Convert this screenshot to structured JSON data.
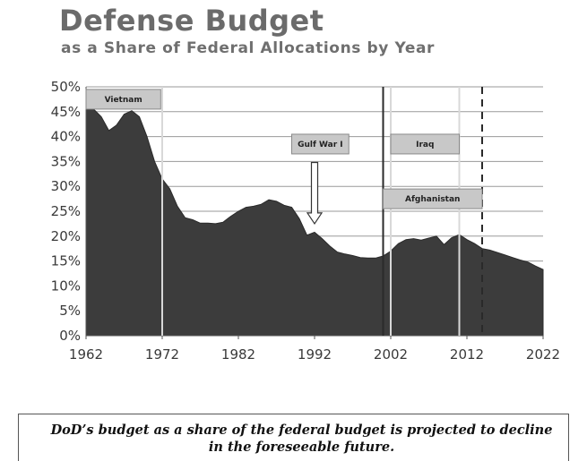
{
  "chart_data": {
    "type": "area",
    "title": "Defense Budget",
    "subtitle": "as a Share of Federal Allocations by Year",
    "y_unit": "%",
    "ylim": [
      0,
      50
    ],
    "y_ticks": [
      0,
      5,
      10,
      15,
      20,
      25,
      30,
      35,
      40,
      45,
      50
    ],
    "y_tick_labels": [
      "0%",
      "5%",
      "10%",
      "15%",
      "20%",
      "25%",
      "30%",
      "35%",
      "40%",
      "45%",
      "50%"
    ],
    "xlim": [
      1962,
      2022
    ],
    "x_ticks": [
      1962,
      1972,
      1982,
      1992,
      2002,
      2012,
      2022
    ],
    "x_tick_labels": [
      "1962",
      "1972",
      "1982",
      "1992",
      "2002",
      "2012",
      "2022"
    ],
    "grid": true,
    "fill_color": "#3c3c3c",
    "x": [
      1962,
      1963,
      1964,
      1965,
      1966,
      1967,
      1968,
      1969,
      1970,
      1971,
      1972,
      1973,
      1974,
      1975,
      1976,
      1977,
      1978,
      1979,
      1980,
      1981,
      1982,
      1983,
      1984,
      1985,
      1986,
      1987,
      1988,
      1989,
      1990,
      1991,
      1992,
      1993,
      1994,
      1995,
      1996,
      1997,
      1998,
      1999,
      2000,
      2001,
      2002,
      2003,
      2004,
      2005,
      2006,
      2007,
      2008,
      2009,
      2010,
      2011,
      2012,
      2013,
      2014,
      2015,
      2016,
      2017,
      2018,
      2019,
      2020,
      2021,
      2022
    ],
    "values": [
      45.5,
      45.5,
      44.0,
      41.2,
      42.3,
      44.5,
      45.2,
      44.0,
      40.0,
      35.0,
      31.5,
      29.5,
      26.0,
      23.7,
      23.3,
      22.6,
      22.6,
      22.5,
      22.8,
      24.0,
      25.0,
      25.8,
      26.0,
      26.4,
      27.3,
      27.0,
      26.2,
      25.8,
      23.5,
      20.2,
      20.8,
      19.5,
      18.0,
      16.8,
      16.4,
      16.1,
      15.7,
      15.6,
      15.6,
      16.0,
      17.0,
      18.5,
      19.3,
      19.5,
      19.2,
      19.6,
      20.0,
      18.3,
      19.7,
      20.3,
      19.3,
      18.5,
      17.5,
      17.2,
      16.7,
      16.2,
      15.7,
      15.2,
      14.8,
      14.0,
      13.3
    ],
    "markers": [
      {
        "year": 1972,
        "style": "solid",
        "color": "#d8d8d8"
      },
      {
        "year": 2001,
        "style": "solid",
        "color": "#2a2a2a"
      },
      {
        "year": 2002,
        "style": "solid",
        "color": "#d8d8d8"
      },
      {
        "year": 2011,
        "style": "solid",
        "color": "#d8d8d8"
      },
      {
        "year": 2014,
        "style": "dashed",
        "color": "#2a2a2a"
      }
    ],
    "annotations": [
      {
        "label": "Vietnam",
        "x_start": 1962,
        "x_end": 1971.8,
        "y": 47.5
      },
      {
        "label": "Gulf War I",
        "x_start": 1989,
        "x_end": 1996.5,
        "y": 38.5
      },
      {
        "label": "Iraq",
        "x_start": 2002,
        "x_end": 2011,
        "y": 38.5
      },
      {
        "label": "Afghanistan",
        "x_start": 2001,
        "x_end": 2014,
        "y": 27.5
      }
    ],
    "arrow": {
      "year": 1992,
      "from_value": 34.8,
      "to_value": 22.5
    }
  },
  "caption": "DoD’s budget as a share of the federal budget is projected to decline in the foreseeable future."
}
